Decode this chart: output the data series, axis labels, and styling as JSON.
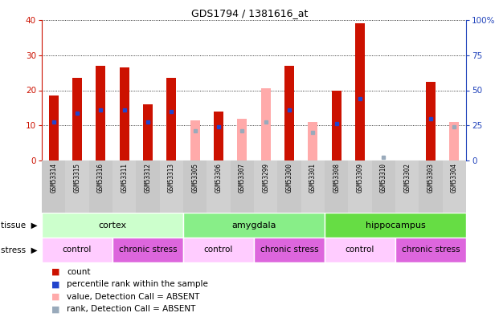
{
  "title": "GDS1794 / 1381616_at",
  "samples": [
    "GSM53314",
    "GSM53315",
    "GSM53316",
    "GSM53311",
    "GSM53312",
    "GSM53313",
    "GSM53305",
    "GSM53306",
    "GSM53307",
    "GSM53299",
    "GSM53300",
    "GSM53301",
    "GSM53308",
    "GSM53309",
    "GSM53310",
    "GSM53302",
    "GSM53303",
    "GSM53304"
  ],
  "red_bars": [
    18.5,
    23.5,
    27.0,
    26.5,
    16.0,
    23.5,
    0.0,
    14.0,
    0.0,
    0.0,
    27.0,
    0.0,
    20.0,
    39.0,
    0.0,
    0.0,
    22.5,
    0.0
  ],
  "pink_bars": [
    0.0,
    0.0,
    0.0,
    0.0,
    0.0,
    0.0,
    11.5,
    0.0,
    12.0,
    20.5,
    0.0,
    11.0,
    0.0,
    0.0,
    0.0,
    0.0,
    0.0,
    11.0
  ],
  "blue_dots_red": [
    11.0,
    13.5,
    14.5,
    14.5,
    11.0,
    14.0,
    0.0,
    9.5,
    0.0,
    0.0,
    14.5,
    0.0,
    10.5,
    17.5,
    0.0,
    0.0,
    12.0,
    0.0
  ],
  "blue_dots_pink": [
    0.0,
    0.0,
    0.0,
    0.0,
    0.0,
    0.0,
    8.5,
    0.0,
    8.5,
    11.0,
    0.0,
    8.0,
    0.0,
    0.0,
    1.0,
    0.0,
    0.0,
    9.5
  ],
  "ylim_left": [
    0,
    40
  ],
  "ylim_right": [
    0,
    100
  ],
  "yticks_left": [
    0,
    10,
    20,
    30,
    40
  ],
  "yticks_right": [
    0,
    25,
    50,
    75,
    100
  ],
  "yticklabels_right": [
    "0",
    "25",
    "50",
    "75",
    "100%"
  ],
  "tissue_groups": [
    {
      "label": "cortex",
      "start": 0,
      "end": 6,
      "color": "#ccffcc"
    },
    {
      "label": "amygdala",
      "start": 6,
      "end": 12,
      "color": "#88ee88"
    },
    {
      "label": "hippocampus",
      "start": 12,
      "end": 18,
      "color": "#66dd44"
    }
  ],
  "stress_groups": [
    {
      "label": "control",
      "start": 0,
      "end": 3,
      "color": "#ffccff"
    },
    {
      "label": "chronic stress",
      "start": 3,
      "end": 6,
      "color": "#dd66dd"
    },
    {
      "label": "control",
      "start": 6,
      "end": 9,
      "color": "#ffccff"
    },
    {
      "label": "chronic stress",
      "start": 9,
      "end": 12,
      "color": "#dd66dd"
    },
    {
      "label": "control",
      "start": 12,
      "end": 15,
      "color": "#ffccff"
    },
    {
      "label": "chronic stress",
      "start": 15,
      "end": 18,
      "color": "#dd66dd"
    }
  ],
  "bar_width": 0.4,
  "red_color": "#cc1100",
  "pink_color": "#ffaaaa",
  "blue_color": "#2244cc",
  "light_blue_color": "#99aabb",
  "left_ycolor": "#cc1100",
  "right_ycolor": "#2244bb",
  "legend_items": [
    {
      "label": "count",
      "color": "#cc1100"
    },
    {
      "label": "percentile rank within the sample",
      "color": "#2244cc"
    },
    {
      "label": "value, Detection Call = ABSENT",
      "color": "#ffaaaa"
    },
    {
      "label": "rank, Detection Call = ABSENT",
      "color": "#99aabb"
    }
  ]
}
